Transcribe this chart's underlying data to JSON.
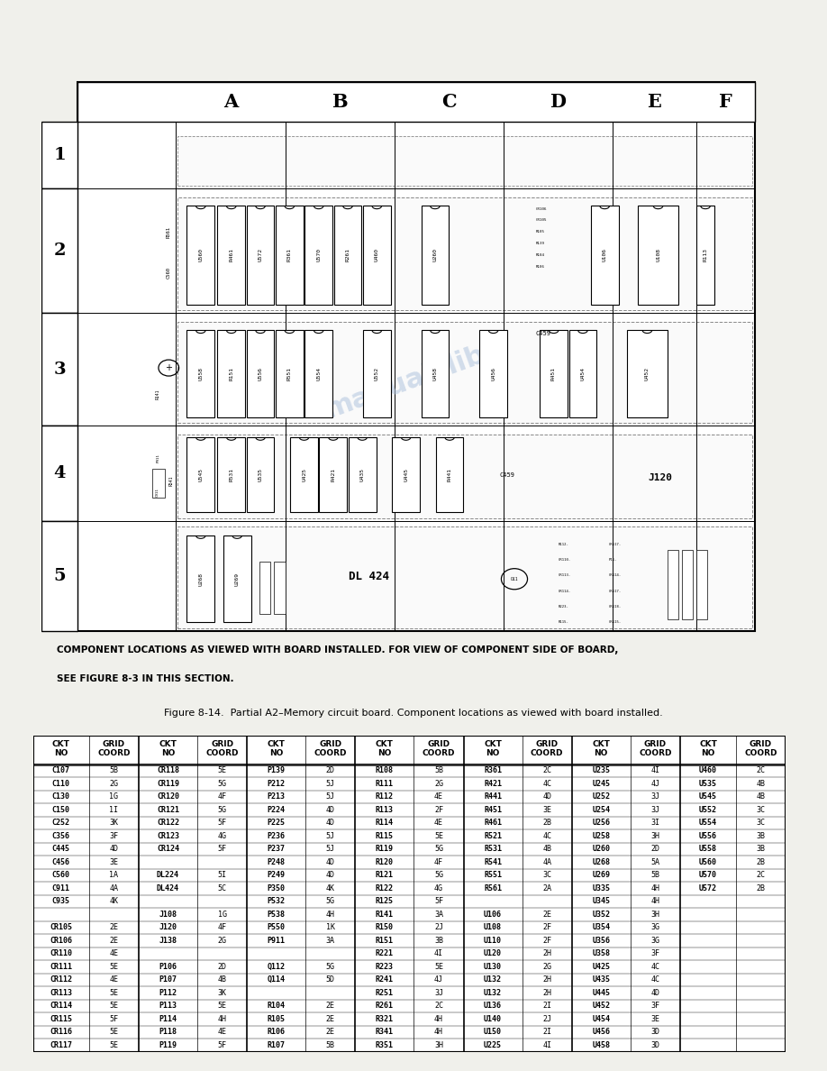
{
  "title_caption": "Figure 8-14.  Partial A2–Memory circuit board. Component locations as viewed with board installed.",
  "note_text": "COMPONENT LOCATIONS AS VIEWED WITH BOARD INSTALLED. FOR VIEW OF COMPONENT SIDE OF BOARD,\nSEE FIGURE 8-3 IN THIS SECTION.",
  "grid_cols": [
    "A",
    "B",
    "C",
    "D",
    "E",
    "F"
  ],
  "grid_rows": [
    "1",
    "2",
    "3",
    "4",
    "5"
  ],
  "table_data": [
    [
      "C107",
      "5B",
      "CR118",
      "5E",
      "P139",
      "2D",
      "R108",
      "5B",
      "R361",
      "2C",
      "U235",
      "4I",
      "U460",
      "2C"
    ],
    [
      "C110",
      "2G",
      "CR119",
      "5G",
      "P212",
      "5J",
      "R111",
      "2G",
      "R421",
      "4C",
      "U245",
      "4J",
      "U535",
      "4B"
    ],
    [
      "C130",
      "1G",
      "CR120",
      "4F",
      "P213",
      "5J",
      "R112",
      "4E",
      "R441",
      "4D",
      "U252",
      "3J",
      "U545",
      "4B"
    ],
    [
      "C150",
      "1I",
      "CR121",
      "5G",
      "P224",
      "4D",
      "R113",
      "2F",
      "R451",
      "3E",
      "U254",
      "3J",
      "U552",
      "3C"
    ],
    [
      "C252",
      "3K",
      "CR122",
      "5F",
      "P225",
      "4D",
      "R114",
      "4E",
      "R461",
      "2B",
      "U256",
      "3I",
      "U554",
      "3C"
    ],
    [
      "C356",
      "3F",
      "CR123",
      "4G",
      "P236",
      "5J",
      "R115",
      "5E",
      "R521",
      "4C",
      "U258",
      "3H",
      "U556",
      "3B"
    ],
    [
      "C445",
      "4D",
      "CR124",
      "5F",
      "P237",
      "5J",
      "R119",
      "5G",
      "R531",
      "4B",
      "U260",
      "2D",
      "U558",
      "3B"
    ],
    [
      "C456",
      "3E",
      "",
      "",
      "P248",
      "4D",
      "R120",
      "4F",
      "R541",
      "4A",
      "U268",
      "5A",
      "U560",
      "2B"
    ],
    [
      "C560",
      "1A",
      "DL224",
      "5I",
      "P249",
      "4D",
      "R121",
      "5G",
      "R551",
      "3C",
      "U269",
      "5B",
      "U570",
      "2C"
    ],
    [
      "C911",
      "4A",
      "DL424",
      "5C",
      "P350",
      "4K",
      "R122",
      "4G",
      "R561",
      "2A",
      "U335",
      "4H",
      "U572",
      "2B"
    ],
    [
      "C935",
      "4K",
      "",
      "",
      "P532",
      "5G",
      "R125",
      "5F",
      "",
      "",
      "U345",
      "4H",
      "",
      ""
    ],
    [
      "",
      "",
      "J108",
      "1G",
      "P538",
      "4H",
      "R141",
      "3A",
      "U106",
      "2E",
      "U352",
      "3H",
      "",
      ""
    ],
    [
      "CR105",
      "2E",
      "J120",
      "4F",
      "P550",
      "1K",
      "R150",
      "2J",
      "U108",
      "2F",
      "U354",
      "3G",
      "",
      ""
    ],
    [
      "CR106",
      "2E",
      "J138",
      "2G",
      "P911",
      "3A",
      "R151",
      "3B",
      "U110",
      "2F",
      "U356",
      "3G",
      "",
      ""
    ],
    [
      "CR110",
      "4E",
      "",
      "",
      "",
      "",
      "R221",
      "4I",
      "U120",
      "2H",
      "U358",
      "3F",
      "",
      ""
    ],
    [
      "CR111",
      "5E",
      "P106",
      "2D",
      "Q112",
      "5G",
      "R223",
      "5E",
      "U130",
      "2G",
      "U425",
      "4C",
      "",
      ""
    ],
    [
      "CR112",
      "4E",
      "P107",
      "4B",
      "Q114",
      "5D",
      "R241",
      "4J",
      "U132",
      "2H",
      "U435",
      "4C",
      "",
      ""
    ],
    [
      "CR113",
      "5E",
      "P112",
      "3K",
      "",
      "",
      "R251",
      "3J",
      "U132",
      "2H",
      "U445",
      "4D",
      "",
      ""
    ],
    [
      "CR114",
      "5E",
      "P113",
      "5E",
      "R104",
      "2E",
      "R261",
      "2C",
      "U136",
      "2I",
      "U452",
      "3F",
      "",
      ""
    ],
    [
      "CR115",
      "5F",
      "P114",
      "4H",
      "R105",
      "2E",
      "R321",
      "4H",
      "U140",
      "2J",
      "U454",
      "3E",
      "",
      ""
    ],
    [
      "CR116",
      "5E",
      "P118",
      "4E",
      "R106",
      "2E",
      "R341",
      "4H",
      "U150",
      "2I",
      "U456",
      "3D",
      "",
      ""
    ],
    [
      "CR117",
      "5E",
      "P119",
      "5F",
      "R107",
      "5B",
      "R351",
      "3H",
      "U225",
      "4I",
      "U458",
      "3D",
      "",
      ""
    ]
  ],
  "bg_color": "#f0f0eb",
  "watermark_color": "#b0c4de"
}
